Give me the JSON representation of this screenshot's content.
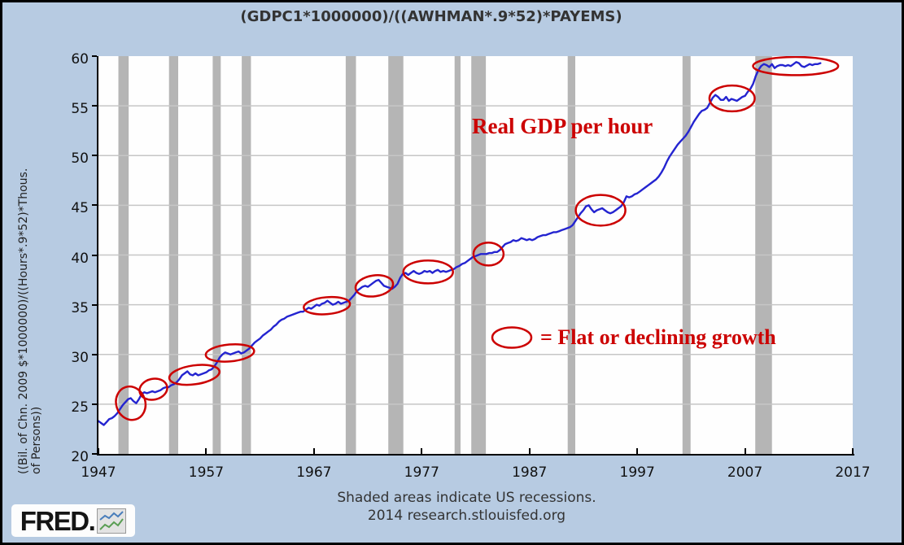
{
  "title": "(GDPC1*1000000)/((AWHMAN*.9*52)*PAYEMS)",
  "y_axis": {
    "label_line1": "((Bil. of Chn. 2009 $*1000000)/((Hours*.9*52)*Thous.",
    "label_line2": "of Persons))"
  },
  "annotations": {
    "line_label": "Real GDP per hour",
    "legend_label": "= Flat or declining growth"
  },
  "footer": {
    "note": "Shaded areas indicate US recessions.",
    "source": "2014 research.stlouisfed.org"
  },
  "logo": {
    "text": "FRED."
  },
  "colors": {
    "background": "#b7cbe2",
    "plot_background": "#fefefe",
    "grid": "#c6c6c6",
    "recession": "#b5b5b5",
    "line": "#2424d0",
    "annotation": "#cc0000",
    "axis": "#000000",
    "text": "#333333"
  },
  "chart_data": {
    "type": "line",
    "title": "(GDPC1*1000000)/((AWHMAN*.9*52)*PAYEMS)",
    "xlabel": "",
    "ylabel": "((Bil. of Chn. 2009 $*1000000)/((Hours*.9*52)*Thous. of Persons))",
    "xlim": [
      1947,
      2017
    ],
    "ylim": [
      20,
      60
    ],
    "x_ticks": [
      1947,
      1957,
      1967,
      1977,
      1987,
      1997,
      2007,
      2017
    ],
    "y_ticks": [
      20,
      25,
      30,
      35,
      40,
      45,
      50,
      55,
      60
    ],
    "grid": "horizontal",
    "legend_position": "none",
    "recessions": [
      [
        1948.85,
        1949.8
      ],
      [
        1953.55,
        1954.4
      ],
      [
        1957.6,
        1958.35
      ],
      [
        1960.3,
        1961.15
      ],
      [
        1969.95,
        1970.9
      ],
      [
        1973.9,
        1975.3
      ],
      [
        1980.05,
        1980.6
      ],
      [
        1981.6,
        1982.95
      ],
      [
        1990.55,
        1991.25
      ],
      [
        2001.2,
        2001.95
      ],
      [
        2007.95,
        2009.5
      ]
    ],
    "flat_growth_ellipses": [
      {
        "x": 1950.0,
        "y": 25.1,
        "rx": 1.35,
        "ry": 1.7,
        "rot": -18
      },
      {
        "x": 1952.1,
        "y": 26.5,
        "rx": 1.3,
        "ry": 1.05,
        "rot": -12
      },
      {
        "x": 1955.9,
        "y": 27.95,
        "rx": 2.35,
        "ry": 0.95,
        "rot": -8
      },
      {
        "x": 1959.2,
        "y": 30.15,
        "rx": 2.25,
        "ry": 0.85,
        "rot": -5
      },
      {
        "x": 1968.2,
        "y": 34.9,
        "rx": 2.15,
        "ry": 0.85,
        "rot": -5
      },
      {
        "x": 1972.6,
        "y": 36.9,
        "rx": 1.75,
        "ry": 1.05,
        "rot": -8
      },
      {
        "x": 1977.6,
        "y": 38.3,
        "rx": 2.3,
        "ry": 1.15,
        "rot": 0
      },
      {
        "x": 1983.2,
        "y": 40.1,
        "rx": 1.4,
        "ry": 1.15,
        "rot": 0
      },
      {
        "x": 1993.6,
        "y": 44.5,
        "rx": 2.3,
        "ry": 1.55,
        "rot": 0
      },
      {
        "x": 2005.8,
        "y": 55.75,
        "rx": 2.1,
        "ry": 1.3,
        "rot": 0
      },
      {
        "x": 2011.7,
        "y": 59.0,
        "rx": 3.95,
        "ry": 0.92,
        "rot": 0
      }
    ],
    "series": [
      {
        "name": "Real GDP per hour",
        "points": [
          [
            1947.0,
            23.3
          ],
          [
            1947.25,
            23.1
          ],
          [
            1947.5,
            22.9
          ],
          [
            1947.75,
            23.2
          ],
          [
            1948.0,
            23.5
          ],
          [
            1948.25,
            23.6
          ],
          [
            1948.5,
            23.8
          ],
          [
            1948.75,
            24.1
          ],
          [
            1949.0,
            24.5
          ],
          [
            1949.25,
            24.9
          ],
          [
            1949.5,
            25.2
          ],
          [
            1949.75,
            25.5
          ],
          [
            1950.0,
            25.6
          ],
          [
            1950.25,
            25.3
          ],
          [
            1950.5,
            25.1
          ],
          [
            1950.75,
            25.5
          ],
          [
            1951.0,
            26.0
          ],
          [
            1951.25,
            26.2
          ],
          [
            1951.5,
            26.1
          ],
          [
            1951.75,
            26.2
          ],
          [
            1952.0,
            26.3
          ],
          [
            1952.25,
            26.2
          ],
          [
            1952.5,
            26.3
          ],
          [
            1952.75,
            26.4
          ],
          [
            1953.0,
            26.6
          ],
          [
            1953.25,
            26.7
          ],
          [
            1953.5,
            26.7
          ],
          [
            1953.75,
            26.9
          ],
          [
            1954.0,
            27.0
          ],
          [
            1954.25,
            27.2
          ],
          [
            1954.5,
            27.5
          ],
          [
            1954.75,
            27.9
          ],
          [
            1955.0,
            28.1
          ],
          [
            1955.25,
            28.3
          ],
          [
            1955.5,
            28.0
          ],
          [
            1955.75,
            27.9
          ],
          [
            1956.0,
            28.1
          ],
          [
            1956.25,
            27.9
          ],
          [
            1956.5,
            28.0
          ],
          [
            1956.75,
            28.1
          ],
          [
            1957.0,
            28.2
          ],
          [
            1957.25,
            28.4
          ],
          [
            1957.5,
            28.5
          ],
          [
            1957.75,
            28.8
          ],
          [
            1958.0,
            29.2
          ],
          [
            1958.25,
            29.7
          ],
          [
            1958.5,
            30.0
          ],
          [
            1958.75,
            30.2
          ],
          [
            1959.0,
            30.1
          ],
          [
            1959.25,
            30.0
          ],
          [
            1959.5,
            30.1
          ],
          [
            1959.75,
            30.2
          ],
          [
            1960.0,
            30.3
          ],
          [
            1960.25,
            30.1
          ],
          [
            1960.5,
            30.2
          ],
          [
            1960.75,
            30.4
          ],
          [
            1961.0,
            30.6
          ],
          [
            1961.25,
            30.9
          ],
          [
            1961.5,
            31.2
          ],
          [
            1961.75,
            31.4
          ],
          [
            1962.0,
            31.6
          ],
          [
            1962.25,
            31.9
          ],
          [
            1962.5,
            32.1
          ],
          [
            1962.75,
            32.3
          ],
          [
            1963.0,
            32.5
          ],
          [
            1963.25,
            32.8
          ],
          [
            1963.5,
            33.0
          ],
          [
            1963.75,
            33.3
          ],
          [
            1964.0,
            33.5
          ],
          [
            1964.25,
            33.6
          ],
          [
            1964.5,
            33.8
          ],
          [
            1964.75,
            33.9
          ],
          [
            1965.0,
            34.0
          ],
          [
            1965.25,
            34.1
          ],
          [
            1965.5,
            34.2
          ],
          [
            1965.75,
            34.3
          ],
          [
            1966.0,
            34.3
          ],
          [
            1966.25,
            34.5
          ],
          [
            1966.5,
            34.7
          ],
          [
            1966.75,
            34.6
          ],
          [
            1967.0,
            34.8
          ],
          [
            1967.25,
            35.0
          ],
          [
            1967.5,
            34.9
          ],
          [
            1967.75,
            35.1
          ],
          [
            1968.0,
            35.2
          ],
          [
            1968.25,
            35.4
          ],
          [
            1968.5,
            35.2
          ],
          [
            1968.75,
            35.0
          ],
          [
            1969.0,
            35.1
          ],
          [
            1969.25,
            35.3
          ],
          [
            1969.5,
            35.1
          ],
          [
            1969.75,
            35.2
          ],
          [
            1970.0,
            35.3
          ],
          [
            1970.25,
            35.4
          ],
          [
            1970.5,
            35.7
          ],
          [
            1970.75,
            36.0
          ],
          [
            1971.0,
            36.4
          ],
          [
            1971.25,
            36.6
          ],
          [
            1971.5,
            36.8
          ],
          [
            1971.75,
            36.9
          ],
          [
            1972.0,
            36.8
          ],
          [
            1972.25,
            37.0
          ],
          [
            1972.5,
            37.2
          ],
          [
            1972.75,
            37.4
          ],
          [
            1973.0,
            37.5
          ],
          [
            1973.25,
            37.2
          ],
          [
            1973.5,
            36.9
          ],
          [
            1973.75,
            36.8
          ],
          [
            1974.0,
            36.7
          ],
          [
            1974.25,
            36.6
          ],
          [
            1974.5,
            36.8
          ],
          [
            1974.75,
            37.1
          ],
          [
            1975.0,
            37.7
          ],
          [
            1975.25,
            38.1
          ],
          [
            1975.5,
            38.2
          ],
          [
            1975.75,
            38.0
          ],
          [
            1976.0,
            38.2
          ],
          [
            1976.25,
            38.4
          ],
          [
            1976.5,
            38.2
          ],
          [
            1976.75,
            38.1
          ],
          [
            1977.0,
            38.2
          ],
          [
            1977.25,
            38.4
          ],
          [
            1977.5,
            38.3
          ],
          [
            1977.75,
            38.4
          ],
          [
            1978.0,
            38.2
          ],
          [
            1978.25,
            38.4
          ],
          [
            1978.5,
            38.5
          ],
          [
            1978.75,
            38.3
          ],
          [
            1979.0,
            38.4
          ],
          [
            1979.25,
            38.3
          ],
          [
            1979.5,
            38.4
          ],
          [
            1979.75,
            38.5
          ],
          [
            1980.0,
            38.6
          ],
          [
            1980.25,
            38.8
          ],
          [
            1980.5,
            38.9
          ],
          [
            1980.75,
            39.1
          ],
          [
            1981.0,
            39.2
          ],
          [
            1981.25,
            39.4
          ],
          [
            1981.5,
            39.6
          ],
          [
            1981.75,
            39.8
          ],
          [
            1982.0,
            39.9
          ],
          [
            1982.25,
            40.0
          ],
          [
            1982.5,
            40.1
          ],
          [
            1982.75,
            40.1
          ],
          [
            1983.0,
            40.1
          ],
          [
            1983.25,
            40.2
          ],
          [
            1983.5,
            40.2
          ],
          [
            1983.75,
            40.3
          ],
          [
            1984.0,
            40.3
          ],
          [
            1984.25,
            40.5
          ],
          [
            1984.5,
            40.8
          ],
          [
            1984.75,
            41.1
          ],
          [
            1985.0,
            41.2
          ],
          [
            1985.25,
            41.3
          ],
          [
            1985.5,
            41.5
          ],
          [
            1985.75,
            41.4
          ],
          [
            1986.0,
            41.5
          ],
          [
            1986.25,
            41.7
          ],
          [
            1986.5,
            41.6
          ],
          [
            1986.75,
            41.5
          ],
          [
            1987.0,
            41.6
          ],
          [
            1987.25,
            41.5
          ],
          [
            1987.5,
            41.6
          ],
          [
            1987.75,
            41.8
          ],
          [
            1988.0,
            41.9
          ],
          [
            1988.25,
            42.0
          ],
          [
            1988.5,
            42.0
          ],
          [
            1988.75,
            42.1
          ],
          [
            1989.0,
            42.2
          ],
          [
            1989.25,
            42.3
          ],
          [
            1989.5,
            42.3
          ],
          [
            1989.75,
            42.4
          ],
          [
            1990.0,
            42.5
          ],
          [
            1990.25,
            42.6
          ],
          [
            1990.5,
            42.7
          ],
          [
            1990.75,
            42.8
          ],
          [
            1991.0,
            43.0
          ],
          [
            1991.25,
            43.4
          ],
          [
            1991.5,
            43.8
          ],
          [
            1991.75,
            44.2
          ],
          [
            1992.0,
            44.5
          ],
          [
            1992.25,
            44.9
          ],
          [
            1992.5,
            45.0
          ],
          [
            1992.75,
            44.6
          ],
          [
            1993.0,
            44.3
          ],
          [
            1993.25,
            44.5
          ],
          [
            1993.5,
            44.6
          ],
          [
            1993.75,
            44.7
          ],
          [
            1994.0,
            44.5
          ],
          [
            1994.25,
            44.3
          ],
          [
            1994.5,
            44.2
          ],
          [
            1994.75,
            44.3
          ],
          [
            1995.0,
            44.5
          ],
          [
            1995.25,
            44.7
          ],
          [
            1995.5,
            44.9
          ],
          [
            1995.75,
            45.3
          ],
          [
            1996.0,
            45.9
          ],
          [
            1996.25,
            45.8
          ],
          [
            1996.5,
            45.9
          ],
          [
            1996.75,
            46.1
          ],
          [
            1997.0,
            46.2
          ],
          [
            1997.25,
            46.4
          ],
          [
            1997.5,
            46.6
          ],
          [
            1997.75,
            46.8
          ],
          [
            1998.0,
            47.0
          ],
          [
            1998.25,
            47.2
          ],
          [
            1998.5,
            47.4
          ],
          [
            1998.75,
            47.6
          ],
          [
            1999.0,
            47.9
          ],
          [
            1999.25,
            48.3
          ],
          [
            1999.5,
            48.8
          ],
          [
            1999.75,
            49.4
          ],
          [
            2000.0,
            49.9
          ],
          [
            2000.25,
            50.3
          ],
          [
            2000.5,
            50.7
          ],
          [
            2000.75,
            51.1
          ],
          [
            2001.0,
            51.4
          ],
          [
            2001.25,
            51.7
          ],
          [
            2001.5,
            52.0
          ],
          [
            2001.75,
            52.4
          ],
          [
            2002.0,
            52.9
          ],
          [
            2002.25,
            53.4
          ],
          [
            2002.5,
            53.8
          ],
          [
            2002.75,
            54.2
          ],
          [
            2003.0,
            54.5
          ],
          [
            2003.25,
            54.6
          ],
          [
            2003.5,
            54.8
          ],
          [
            2003.75,
            55.3
          ],
          [
            2004.0,
            55.8
          ],
          [
            2004.25,
            56.1
          ],
          [
            2004.5,
            55.9
          ],
          [
            2004.75,
            55.6
          ],
          [
            2005.0,
            55.6
          ],
          [
            2005.25,
            55.9
          ],
          [
            2005.5,
            55.5
          ],
          [
            2005.75,
            55.7
          ],
          [
            2006.0,
            55.6
          ],
          [
            2006.25,
            55.5
          ],
          [
            2006.5,
            55.7
          ],
          [
            2006.75,
            55.9
          ],
          [
            2007.0,
            56.0
          ],
          [
            2007.25,
            56.4
          ],
          [
            2007.5,
            56.7
          ],
          [
            2007.75,
            57.2
          ],
          [
            2008.0,
            58.0
          ],
          [
            2008.25,
            58.6
          ],
          [
            2008.5,
            59.0
          ],
          [
            2008.75,
            59.2
          ],
          [
            2009.0,
            59.1
          ],
          [
            2009.25,
            58.9
          ],
          [
            2009.5,
            59.2
          ],
          [
            2009.75,
            58.8
          ],
          [
            2010.0,
            59.0
          ],
          [
            2010.25,
            59.1
          ],
          [
            2010.5,
            59.1
          ],
          [
            2010.75,
            59.0
          ],
          [
            2011.0,
            59.1
          ],
          [
            2011.25,
            59.0
          ],
          [
            2011.5,
            59.2
          ],
          [
            2011.75,
            59.4
          ],
          [
            2012.0,
            59.3
          ],
          [
            2012.25,
            59.0
          ],
          [
            2012.5,
            58.9
          ],
          [
            2013.0,
            59.2
          ],
          [
            2013.25,
            59.1
          ],
          [
            2013.5,
            59.2
          ],
          [
            2013.75,
            59.2
          ],
          [
            2014.0,
            59.3
          ]
        ]
      }
    ]
  }
}
